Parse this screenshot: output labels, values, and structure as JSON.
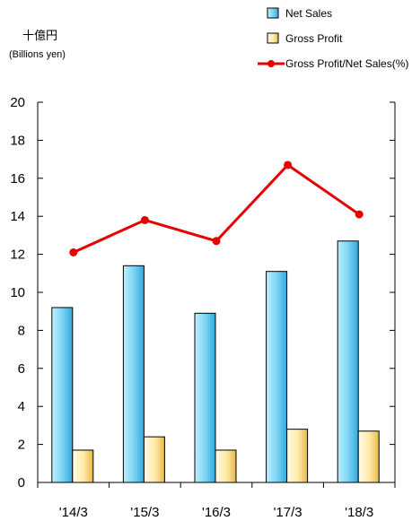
{
  "chart_data": {
    "type": "bar",
    "categories": [
      "'14/3",
      "'15/3",
      "'16/3",
      "'17/3",
      "'18/3"
    ],
    "series": [
      {
        "name": "Net  Sales",
        "kind": "bar",
        "values": [
          9.2,
          11.4,
          8.9,
          11.1,
          12.7
        ],
        "color": "#7fd4f4"
      },
      {
        "name": "Gross  Profit",
        "kind": "bar",
        "values": [
          1.7,
          2.4,
          1.7,
          2.8,
          2.7
        ],
        "color": "#ffe9a6"
      },
      {
        "name": "Gross  Profit/Net  Sales(%)",
        "kind": "line",
        "values": [
          12.1,
          13.8,
          12.7,
          16.7,
          14.1
        ],
        "color": "#e60000"
      }
    ],
    "ylim": [
      0,
      20
    ],
    "yticks": [
      0,
      2,
      4,
      6,
      8,
      10,
      12,
      14,
      16,
      18,
      20
    ],
    "unit_label_jp": "十億円",
    "unit_label_en": "(Billions yen)",
    "grid": false,
    "legend_position": "top-right"
  }
}
